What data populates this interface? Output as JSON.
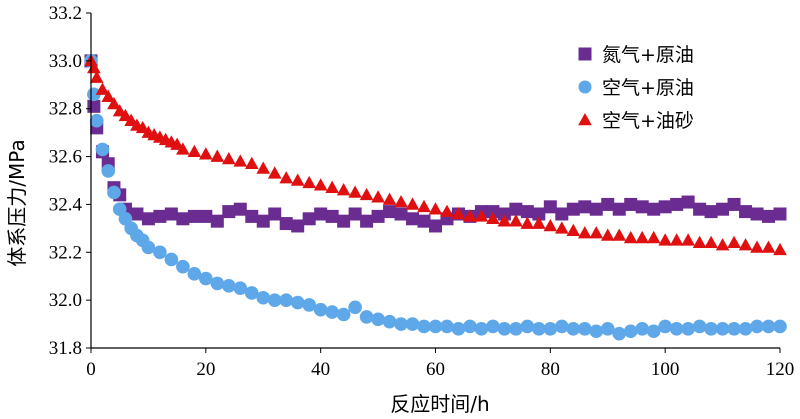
{
  "chart_data": {
    "type": "scatter",
    "title": "",
    "xlabel": "反应时间/h",
    "ylabel": "体系压力/MPa",
    "xlim": [
      0,
      120
    ],
    "ylim": [
      31.8,
      33.2
    ],
    "xticks": [
      "0",
      "20",
      "40",
      "60",
      "80",
      "100",
      "120"
    ],
    "yticks": [
      "31.8",
      "32.0",
      "32.2",
      "32.4",
      "32.6",
      "32.8",
      "33.0",
      "33.2"
    ],
    "grid": false,
    "legend_position": "top-right",
    "series": [
      {
        "name": "氮气+原油",
        "marker": "square",
        "color": "#6b2c91",
        "x": [
          0,
          0.5,
          1,
          2,
          3,
          4,
          5,
          6,
          8,
          10,
          12,
          14,
          16,
          18,
          20,
          22,
          24,
          26,
          28,
          30,
          32,
          34,
          36,
          38,
          40,
          42,
          44,
          46,
          48,
          50,
          52,
          54,
          56,
          58,
          60,
          62,
          64,
          66,
          68,
          70,
          72,
          74,
          76,
          78,
          80,
          82,
          84,
          86,
          88,
          90,
          92,
          94,
          96,
          98,
          100,
          102,
          104,
          106,
          108,
          110,
          112,
          114,
          116,
          118,
          120
        ],
        "y": [
          33.0,
          32.81,
          32.72,
          32.62,
          32.57,
          32.47,
          32.44,
          32.38,
          32.36,
          32.34,
          32.35,
          32.36,
          32.34,
          32.35,
          32.35,
          32.33,
          32.37,
          32.38,
          32.35,
          32.33,
          32.36,
          32.32,
          32.31,
          32.34,
          32.36,
          32.35,
          32.33,
          32.36,
          32.33,
          32.35,
          32.37,
          32.36,
          32.34,
          32.33,
          32.31,
          32.34,
          32.36,
          32.35,
          32.37,
          32.37,
          32.36,
          32.38,
          32.37,
          32.36,
          32.39,
          32.36,
          32.38,
          32.39,
          32.38,
          32.4,
          32.38,
          32.4,
          32.39,
          32.38,
          32.39,
          32.4,
          32.41,
          32.38,
          32.37,
          32.38,
          32.4,
          32.37,
          32.36,
          32.35,
          32.36
        ]
      },
      {
        "name": "空气+原油",
        "marker": "circle",
        "color": "#5ea7e8",
        "x": [
          0,
          0.5,
          1,
          2,
          3,
          4,
          5,
          6,
          7,
          8,
          9,
          10,
          12,
          14,
          16,
          18,
          20,
          22,
          24,
          26,
          28,
          30,
          32,
          34,
          36,
          38,
          40,
          42,
          44,
          46,
          48,
          50,
          52,
          54,
          56,
          58,
          60,
          62,
          64,
          66,
          68,
          70,
          72,
          74,
          76,
          78,
          80,
          82,
          84,
          86,
          88,
          90,
          92,
          94,
          96,
          98,
          100,
          102,
          104,
          106,
          108,
          110,
          112,
          114,
          116,
          118,
          120
        ],
        "y": [
          33.0,
          32.86,
          32.75,
          32.63,
          32.54,
          32.45,
          32.38,
          32.34,
          32.3,
          32.27,
          32.25,
          32.22,
          32.2,
          32.17,
          32.14,
          32.11,
          32.09,
          32.07,
          32.06,
          32.05,
          32.03,
          32.01,
          32.0,
          32.0,
          31.99,
          31.98,
          31.96,
          31.95,
          31.94,
          31.97,
          31.93,
          31.92,
          31.91,
          31.9,
          31.9,
          31.89,
          31.89,
          31.89,
          31.88,
          31.89,
          31.88,
          31.89,
          31.88,
          31.88,
          31.89,
          31.88,
          31.88,
          31.89,
          31.88,
          31.88,
          31.87,
          31.88,
          31.86,
          31.87,
          31.88,
          31.87,
          31.89,
          31.88,
          31.88,
          31.89,
          31.88,
          31.88,
          31.88,
          31.88,
          31.89,
          31.89,
          31.89
        ]
      },
      {
        "name": "空气+油砂",
        "marker": "triangle",
        "color": "#e01010",
        "x": [
          0,
          0.5,
          1,
          2,
          3,
          4,
          5,
          6,
          7,
          8,
          9,
          10,
          11,
          12,
          13,
          14,
          15,
          16,
          18,
          20,
          22,
          24,
          26,
          28,
          30,
          32,
          34,
          36,
          38,
          40,
          42,
          44,
          46,
          48,
          50,
          52,
          54,
          56,
          58,
          60,
          62,
          64,
          66,
          68,
          70,
          72,
          74,
          76,
          78,
          80,
          82,
          84,
          86,
          88,
          90,
          92,
          94,
          96,
          98,
          100,
          102,
          104,
          106,
          108,
          110,
          112,
          114,
          116,
          118,
          120
        ],
        "y": [
          33.0,
          32.97,
          32.93,
          32.88,
          32.85,
          32.82,
          32.79,
          32.77,
          32.75,
          32.73,
          32.72,
          32.7,
          32.69,
          32.68,
          32.67,
          32.66,
          32.65,
          32.63,
          32.62,
          32.61,
          32.6,
          32.59,
          32.58,
          32.57,
          32.55,
          32.53,
          32.51,
          32.5,
          32.49,
          32.48,
          32.47,
          32.46,
          32.45,
          32.44,
          32.43,
          32.42,
          32.41,
          32.4,
          32.39,
          32.38,
          32.37,
          32.36,
          32.35,
          32.35,
          32.34,
          32.33,
          32.33,
          32.32,
          32.32,
          32.31,
          32.3,
          32.29,
          32.28,
          32.28,
          32.27,
          32.27,
          32.26,
          32.26,
          32.26,
          32.25,
          32.25,
          32.25,
          32.24,
          32.24,
          32.23,
          32.24,
          32.23,
          32.22,
          32.22,
          32.21
        ]
      }
    ]
  }
}
